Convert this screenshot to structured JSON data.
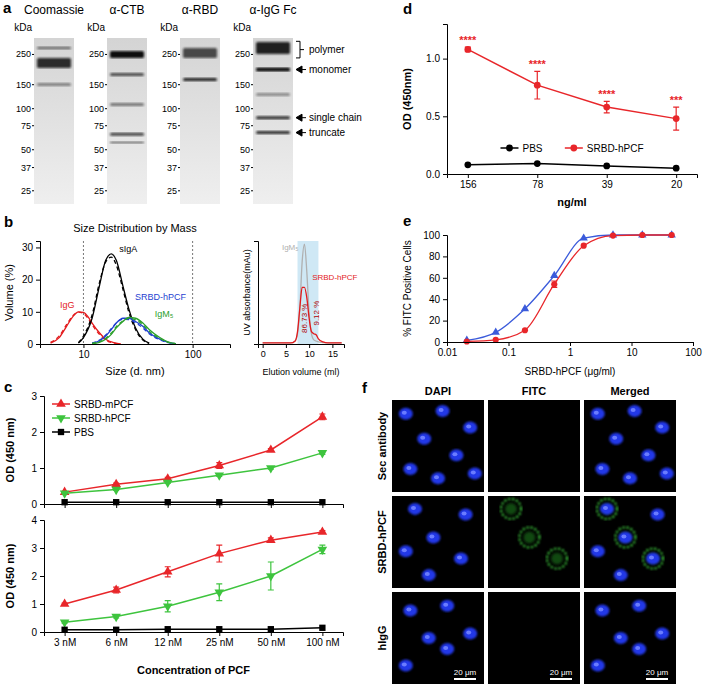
{
  "blot": {
    "label": "a",
    "unit": "kDa",
    "mw_range": [
      20,
      330
    ],
    "strips": [
      {
        "title": "Coomassie",
        "markers": [
          250,
          150,
          100,
          75,
          50,
          37,
          25
        ]
      },
      {
        "title": "α-CTB",
        "markers": [
          250,
          150,
          100,
          75,
          50,
          37,
          25
        ]
      },
      {
        "title": "α-RBD",
        "markers": [
          250,
          150,
          100,
          75,
          50,
          37,
          25
        ]
      },
      {
        "title": "α-IgG Fc",
        "markers": [
          250,
          150,
          100,
          75,
          50,
          37,
          25
        ]
      }
    ],
    "bands": [
      "polymer",
      "monomer",
      "single chain",
      "truncate"
    ]
  },
  "chart_data": [
    {
      "panel": "b",
      "type": "line",
      "title": "Size Distribution by Mass",
      "x_label": "Size (d. nm)",
      "y_label": "Volume (%)",
      "log": "x",
      "xlim": [
        4,
        220
      ],
      "xticks": [
        10,
        100
      ],
      "ylim": [
        0,
        32
      ],
      "yticks": [
        0,
        10,
        20,
        30
      ],
      "grid": "x",
      "series": [
        {
          "name": "IgG",
          "color": "#e31a1c",
          "x": [
            5,
            6,
            7,
            8,
            9,
            10,
            11,
            12,
            14,
            16,
            19,
            22
          ],
          "values": [
            0.3,
            2,
            5.5,
            8.5,
            10,
            9.8,
            8.5,
            6.5,
            3.5,
            1.5,
            0.4,
            0
          ]
        },
        {
          "color": "#e31a1c",
          "line_style": "dashed",
          "x": [
            5,
            6,
            7,
            8,
            9,
            10,
            11,
            12,
            14,
            16,
            19,
            22
          ],
          "values": [
            0.5,
            2.5,
            6,
            8.8,
            9.9,
            9.5,
            8,
            6,
            3,
            1.2,
            0.3,
            0
          ]
        },
        {
          "name": "sIgA",
          "color": "#000000",
          "x": [
            9,
            10,
            12,
            14,
            16,
            18,
            20,
            23,
            26,
            30,
            35,
            40
          ],
          "values": [
            0.3,
            2,
            8,
            18,
            26,
            28,
            26,
            18,
            11,
            5,
            1.5,
            0.3
          ]
        },
        {
          "color": "#000000",
          "line_style": "dashed",
          "x": [
            9,
            10,
            12,
            14,
            16,
            18,
            20,
            23,
            26,
            30,
            35,
            40
          ],
          "values": [
            0.4,
            2.5,
            9,
            19,
            25.5,
            27,
            24.5,
            17,
            10,
            4.5,
            1.2,
            0.2
          ]
        },
        {
          "name": "SRBD-hPCF",
          "color": "#1f3fd1",
          "x": [
            12,
            14,
            16,
            18,
            20,
            23,
            26,
            30,
            35,
            40,
            50,
            60,
            70
          ],
          "values": [
            0.2,
            1,
            2.5,
            4.5,
            6.5,
            8,
            8,
            7,
            5.5,
            3.5,
            1.5,
            0.5,
            0.1
          ]
        },
        {
          "color": "#1f3fd1",
          "line_style": "dashed",
          "x": [
            12,
            14,
            16,
            18,
            20,
            23,
            26,
            30,
            35,
            40,
            50,
            60,
            70
          ],
          "values": [
            0.3,
            1.2,
            2.8,
            4.8,
            6.6,
            7.7,
            7.6,
            6.6,
            5,
            3.2,
            1.3,
            0.4,
            0.1
          ]
        },
        {
          "name": "IgM₅",
          "color": "#2ca02c",
          "x": [
            12,
            14,
            16,
            18,
            20,
            23,
            26,
            30,
            35,
            40,
            50,
            60,
            70
          ],
          "values": [
            0.1,
            0.5,
            1.5,
            3,
            5,
            7,
            8.3,
            8,
            6.5,
            4.5,
            2,
            0.6,
            0.1
          ]
        },
        {
          "color": "#2ca02c",
          "line_style": "dashed",
          "x": [
            12,
            14,
            16,
            18,
            20,
            23,
            26,
            30,
            35,
            40,
            50,
            60,
            70
          ],
          "values": [
            0.2,
            0.7,
            1.8,
            3.4,
            5.4,
            7.2,
            8,
            7.5,
            6,
            4,
            1.7,
            0.5,
            0.1
          ]
        }
      ]
    },
    {
      "type": "line",
      "x_label": "Elution volume (ml)",
      "y_label": "UV absorbance(mAu)",
      "xlim": [
        -1,
        17.5
      ],
      "xticks": [
        0,
        5,
        10,
        15
      ],
      "ylim": [
        0,
        100
      ],
      "tick_labels": "x",
      "region": [
        7.5,
        12
      ],
      "annotations": [
        {
          "text": "86.73 %",
          "x": 9,
          "y": 25
        },
        {
          "text": "9.12 %",
          "x": 11.6,
          "y": 30
        }
      ],
      "series": [
        {
          "name": "IgM₅",
          "color": "#b0b0b0",
          "x": [
            0,
            6,
            7,
            7.5,
            8,
            8.5,
            9,
            9.5,
            10,
            10.5,
            11,
            12,
            14,
            17
          ],
          "values": [
            1,
            1,
            3,
            10,
            35,
            80,
            97,
            70,
            30,
            10,
            4,
            2,
            1,
            1
          ]
        },
        {
          "name": "SRBD-hPCF",
          "color": "#e31a1c",
          "x": [
            0,
            6,
            7,
            7.5,
            8,
            8.5,
            9,
            9.5,
            10,
            10.5,
            11,
            11.5,
            12,
            13,
            14,
            17
          ],
          "values": [
            1,
            1,
            3,
            12,
            35,
            55,
            55,
            45,
            25,
            12,
            10,
            9,
            5,
            2,
            1,
            1
          ]
        }
      ]
    },
    {
      "panel": "c",
      "type": "line",
      "y_label": "OD (450 nm)",
      "categories": [
        "3 nM",
        "6 nM",
        "12 nM",
        "25 nM",
        "50 nM",
        "100 nM"
      ],
      "ylim": [
        0,
        3
      ],
      "yticks": [
        0,
        1,
        2,
        3
      ],
      "tick_labels": "y",
      "legend": "upper left",
      "series": [
        {
          "name": "SRBD-mPCF",
          "color": "#e8262a",
          "marker": "triangle",
          "values": [
            0.33,
            0.55,
            0.7,
            1.07,
            1.5,
            2.42
          ],
          "errors": [
            0.02,
            0.03,
            0.04,
            0.08,
            0.04,
            0.08
          ]
        },
        {
          "name": "SRBD-hPCF",
          "color": "#3ec43e",
          "marker": "triangle-down",
          "values": [
            0.3,
            0.4,
            0.6,
            0.8,
            1.0,
            1.42
          ],
          "errors": [
            0.02,
            0.02,
            0.03,
            0.03,
            0.03,
            0.04
          ]
        },
        {
          "name": "PBS",
          "color": "#000000",
          "marker": "square",
          "values": [
            0.05,
            0.05,
            0.05,
            0.05,
            0.05,
            0.05
          ]
        }
      ]
    },
    {
      "type": "line",
      "x_label": "Concentration of PCF",
      "y_label": "OD (450 nm)",
      "categories": [
        "3 nM",
        "6 nM",
        "12 nM",
        "25 nM",
        "50 nM",
        "100 nM"
      ],
      "ylim": [
        0,
        4
      ],
      "yticks": [
        0,
        1,
        2,
        3,
        4
      ],
      "series": [
        {
          "name": "SRBD-mPCF",
          "color": "#e8262a",
          "marker": "triangle",
          "values": [
            1.0,
            1.5,
            2.15,
            2.8,
            3.28,
            3.57
          ],
          "errors": [
            0.03,
            0.1,
            0.18,
            0.3,
            0.08,
            0.05
          ]
        },
        {
          "name": "SRBD-hPCF",
          "color": "#3ec43e",
          "marker": "triangle-down",
          "values": [
            0.35,
            0.55,
            0.92,
            1.42,
            2.0,
            2.95
          ],
          "errors": [
            0.03,
            0.05,
            0.2,
            0.3,
            0.5,
            0.15
          ]
        },
        {
          "name": "PBS",
          "color": "#000000",
          "marker": "square",
          "values": [
            0.08,
            0.08,
            0.1,
            0.1,
            0.1,
            0.15
          ]
        }
      ]
    },
    {
      "panel": "d",
      "type": "line",
      "x_label": "ng/ml",
      "y_label": "OD (450nm)",
      "categories": [
        "156",
        "78",
        "39",
        "20"
      ],
      "ylim": [
        0,
        1.3
      ],
      "yticks": [
        {
          "value": 0,
          "label": "0.0"
        },
        0.5,
        {
          "value": 1,
          "label": "1.0"
        }
      ],
      "legend": "lower center",
      "series": [
        {
          "name": "PBS",
          "color": "#000000",
          "marker": "circle",
          "values": [
            0.08,
            0.09,
            0.07,
            0.05
          ]
        },
        {
          "name": "SRBD-hPCF",
          "color": "#e8262a",
          "marker": "circle",
          "values": [
            1.08,
            0.77,
            0.58,
            0.48
          ],
          "errors": [
            0.02,
            0.12,
            0.05,
            0.1
          ],
          "significance": [
            "****",
            "****",
            "****",
            "***"
          ]
        }
      ]
    },
    {
      "panel": "e",
      "type": "line",
      "x_label": "SRBD-hPCF (μg/ml)",
      "y_label": "% FITC Positive Cells",
      "log": "x",
      "xlim": [
        0.01,
        100
      ],
      "xticks": [
        0.01,
        0.1,
        1,
        10,
        100
      ],
      "ylim": [
        0,
        100
      ],
      "yticks": [
        0,
        20,
        40,
        60,
        80,
        100
      ],
      "series": [
        {
          "color": "#3b5bdb",
          "marker": "triangle",
          "x": [
            0.021,
            0.062,
            0.185,
            0.555,
            1.67,
            5,
            15,
            45
          ],
          "values": [
            1.5,
            9,
            31,
            62,
            97,
            100,
            100,
            100
          ]
        },
        {
          "color": "#e8262a",
          "marker": "circle",
          "x": [
            0.021,
            0.062,
            0.185,
            0.555,
            1.67,
            5,
            15,
            45
          ],
          "values": [
            0.5,
            2,
            11,
            54,
            90,
            99.5,
            100,
            100
          ],
          "errors": [
            null,
            null,
            null,
            3,
            null,
            null,
            null,
            null
          ]
        }
      ]
    }
  ],
  "microscopy": {
    "label": "f",
    "columns": [
      "DAPI",
      "FITC",
      "Merged"
    ],
    "rows": [
      "Sec antibody",
      "SRBD-hPCF",
      "hIgG"
    ],
    "scale_bar": "20 μm"
  }
}
